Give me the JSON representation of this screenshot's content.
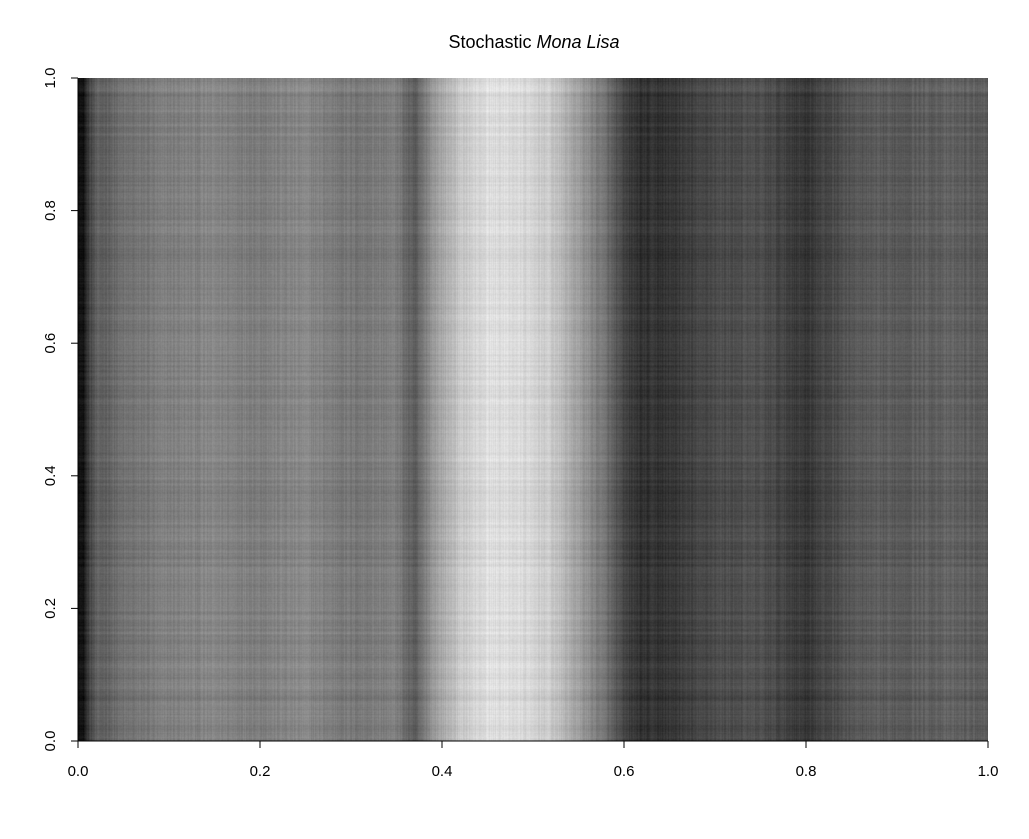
{
  "chart_data": {
    "type": "heatmap",
    "title": {
      "prefix": "Stochastic ",
      "italic": "Mona Lisa"
    },
    "colormap": "grayscale",
    "colors": {
      "background": "#ffffff",
      "axis": "#000000",
      "dark": "#0b0b0b",
      "light": "#f2f2f2"
    },
    "xlim": [
      0.0,
      1.0
    ],
    "ylim": [
      0.0,
      1.0
    ],
    "x_ticks": [
      {
        "value": 0.0,
        "label": "0.0"
      },
      {
        "value": 0.2,
        "label": "0.2"
      },
      {
        "value": 0.4,
        "label": "0.4"
      },
      {
        "value": 0.6,
        "label": "0.6"
      },
      {
        "value": 0.8,
        "label": "0.8"
      },
      {
        "value": 1.0,
        "label": "1.0"
      }
    ],
    "y_ticks": [
      {
        "value": 0.0,
        "label": "0.0"
      },
      {
        "value": 0.2,
        "label": "0.2"
      },
      {
        "value": 0.4,
        "label": "0.4"
      },
      {
        "value": 0.6,
        "label": "0.6"
      },
      {
        "value": 0.8,
        "label": "0.8"
      },
      {
        "value": 1.0,
        "label": "1.0"
      }
    ],
    "intensity_profile": {
      "x": [
        0.0,
        0.005,
        0.012,
        0.02,
        0.05,
        0.1,
        0.15,
        0.2,
        0.25,
        0.3,
        0.35,
        0.37,
        0.39,
        0.42,
        0.45,
        0.48,
        0.52,
        0.55,
        0.58,
        0.6,
        0.62,
        0.65,
        0.7,
        0.75,
        0.8,
        0.85,
        0.9,
        0.95,
        1.0
      ],
      "brightness": [
        0.12,
        0.05,
        0.25,
        0.36,
        0.44,
        0.5,
        0.52,
        0.5,
        0.53,
        0.47,
        0.5,
        0.34,
        0.6,
        0.78,
        0.87,
        0.86,
        0.79,
        0.62,
        0.44,
        0.26,
        0.19,
        0.21,
        0.3,
        0.31,
        0.22,
        0.34,
        0.36,
        0.38,
        0.36
      ]
    },
    "grid": false,
    "legend": "none"
  }
}
